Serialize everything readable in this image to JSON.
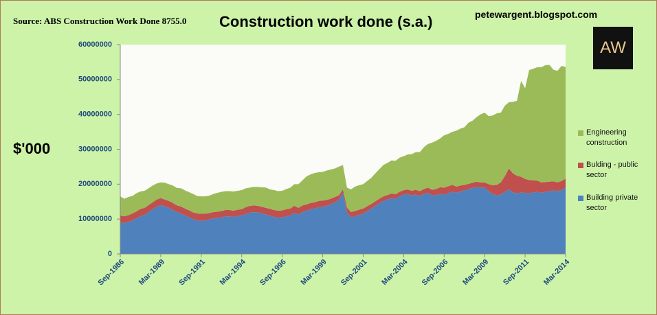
{
  "source": "Source: ABS Construction Work Done 8755.0",
  "blog": "petewargent.blogspot.com",
  "logo": "AW",
  "chart_data": {
    "type": "stacked-area",
    "title": "Construction work done (s.a.)",
    "y_label": "$'000",
    "categories": [
      "Sep-1986",
      null,
      null,
      null,
      null,
      null,
      null,
      null,
      null,
      null,
      "Mar-1989",
      null,
      null,
      null,
      null,
      null,
      null,
      null,
      null,
      null,
      "Sep-1991",
      null,
      null,
      null,
      null,
      null,
      null,
      null,
      null,
      null,
      "Mar-1994",
      null,
      null,
      null,
      null,
      null,
      null,
      null,
      null,
      null,
      "Sep-1996",
      null,
      null,
      null,
      null,
      null,
      null,
      null,
      null,
      null,
      "Mar-1999",
      null,
      null,
      null,
      null,
      null,
      null,
      null,
      null,
      null,
      "Sep-2001",
      null,
      null,
      null,
      null,
      null,
      null,
      null,
      null,
      null,
      "Mar-2004",
      null,
      null,
      null,
      null,
      null,
      null,
      null,
      null,
      null,
      "Sep-2006",
      null,
      null,
      null,
      null,
      null,
      null,
      null,
      null,
      null,
      "Mar-2009",
      null,
      null,
      null,
      null,
      null,
      null,
      null,
      null,
      null,
      "Sep-2011",
      null,
      null,
      null,
      null,
      null,
      null,
      null,
      null,
      null,
      "Mar-2014"
    ],
    "series": [
      {
        "name": "Building private sector",
        "color": "#4f81bd",
        "values": [
          9000000,
          8800000,
          9200000,
          9600000,
          10200000,
          10800000,
          11200000,
          12000000,
          12800000,
          13500000,
          14000000,
          13600000,
          13200000,
          12600000,
          12000000,
          11600000,
          11000000,
          10500000,
          10000000,
          9600000,
          9500000,
          9600000,
          9900000,
          10200000,
          10300000,
          10500000,
          10800000,
          10800000,
          10600000,
          10900000,
          11000000,
          11500000,
          11800000,
          12000000,
          11900000,
          11600000,
          11300000,
          11000000,
          10600000,
          10400000,
          10500000,
          10800000,
          11000000,
          11800000,
          11300000,
          12000000,
          12400000,
          12800000,
          13000000,
          13400000,
          13500000,
          13800000,
          14200000,
          14800000,
          15500000,
          17500000,
          12000000,
          10500000,
          10800000,
          11200000,
          11500000,
          12300000,
          13000000,
          13800000,
          14500000,
          15200000,
          15600000,
          16000000,
          15800000,
          16500000,
          17000000,
          17200000,
          16800000,
          17000000,
          16600000,
          17200000,
          17500000,
          16800000,
          16800000,
          17200000,
          17000000,
          17400000,
          17800000,
          17500000,
          17900000,
          18200000,
          18600000,
          18900000,
          19200000,
          19000000,
          19000000,
          18000000,
          17200000,
          16800000,
          17000000,
          17800000,
          18500000,
          17600000,
          17400000,
          17600000,
          17500000,
          17400000,
          17600000,
          17800000,
          17500000,
          17800000,
          18000000,
          18200000,
          18000000,
          18300000,
          19000000
        ]
      },
      {
        "name": "Bulding - public sector",
        "color": "#c0504d",
        "values": [
          2000000,
          2000000,
          1900000,
          2000000,
          2000000,
          2100000,
          2000000,
          2000000,
          2000000,
          2100000,
          2000000,
          2000000,
          2000000,
          2000000,
          1900000,
          2000000,
          2000000,
          2000000,
          1900000,
          2000000,
          2000000,
          1900000,
          1800000,
          1800000,
          1800000,
          1800000,
          1800000,
          1800000,
          1800000,
          1800000,
          1800000,
          1900000,
          2000000,
          1900000,
          1900000,
          1900000,
          1900000,
          1900000,
          2000000,
          2000000,
          2000000,
          2000000,
          2000000,
          2000000,
          1900000,
          1900000,
          1800000,
          1800000,
          1800000,
          1800000,
          1800000,
          1700000,
          1600000,
          1500000,
          1300000,
          1000000,
          1300000,
          1500000,
          1500000,
          1500000,
          1500000,
          1400000,
          1300000,
          1300000,
          1300000,
          1300000,
          1300000,
          1300000,
          1300000,
          1300000,
          1300000,
          1300000,
          1300000,
          1400000,
          1400000,
          1400000,
          1500000,
          1600000,
          1800000,
          1900000,
          2000000,
          2000000,
          2000000,
          1800000,
          1700000,
          1600000,
          1500000,
          1500000,
          1500000,
          1500000,
          1500000,
          2000000,
          2500000,
          3000000,
          3500000,
          4500000,
          6000000,
          5500000,
          5000000,
          4500000,
          4000000,
          3800000,
          3500000,
          3200000,
          3000000,
          2800000,
          2700000,
          2600000,
          2500000,
          2600000,
          2600000
        ]
      },
      {
        "name": "Engineering construction",
        "color": "#9bbb59",
        "values": [
          5500000,
          5000000,
          5200000,
          5000000,
          5200000,
          5000000,
          4900000,
          4800000,
          4800000,
          4600000,
          4500000,
          4800000,
          4800000,
          5000000,
          5000000,
          5200000,
          5200000,
          5200000,
          5300000,
          5000000,
          5000000,
          5000000,
          5000000,
          5200000,
          5400000,
          5500000,
          5400000,
          5400000,
          5500000,
          5400000,
          5500000,
          5400000,
          5200000,
          5300000,
          5400000,
          5600000,
          5800000,
          5600000,
          5700000,
          5600000,
          5600000,
          5800000,
          6000000,
          6200000,
          6800000,
          7200000,
          8000000,
          8200000,
          8400000,
          8200000,
          8200000,
          8400000,
          8400000,
          8200000,
          8200000,
          7000000,
          5700000,
          6500000,
          7000000,
          7000000,
          7000000,
          7200000,
          7500000,
          8000000,
          8500000,
          9000000,
          9200000,
          9500000,
          9600000,
          9800000,
          9700000,
          10000000,
          10500000,
          10800000,
          11200000,
          12000000,
          12500000,
          13500000,
          13800000,
          14000000,
          15000000,
          15000000,
          15200000,
          16000000,
          16300000,
          16500000,
          17500000,
          17800000,
          18500000,
          19500000,
          20000000,
          19500000,
          20000000,
          20500000,
          20000000,
          20200000,
          19000000,
          20500000,
          21500000,
          27500000,
          26000000,
          31500000,
          32000000,
          32500000,
          33000000,
          33500000,
          33500000,
          32000000,
          32000000,
          33000000,
          32000000
        ]
      }
    ],
    "ylim": [
      0,
      60000000
    ],
    "yticks": [
      0,
      10000000,
      20000000,
      30000000,
      40000000,
      50000000,
      60000000
    ],
    "grid": false,
    "legend": "right"
  }
}
